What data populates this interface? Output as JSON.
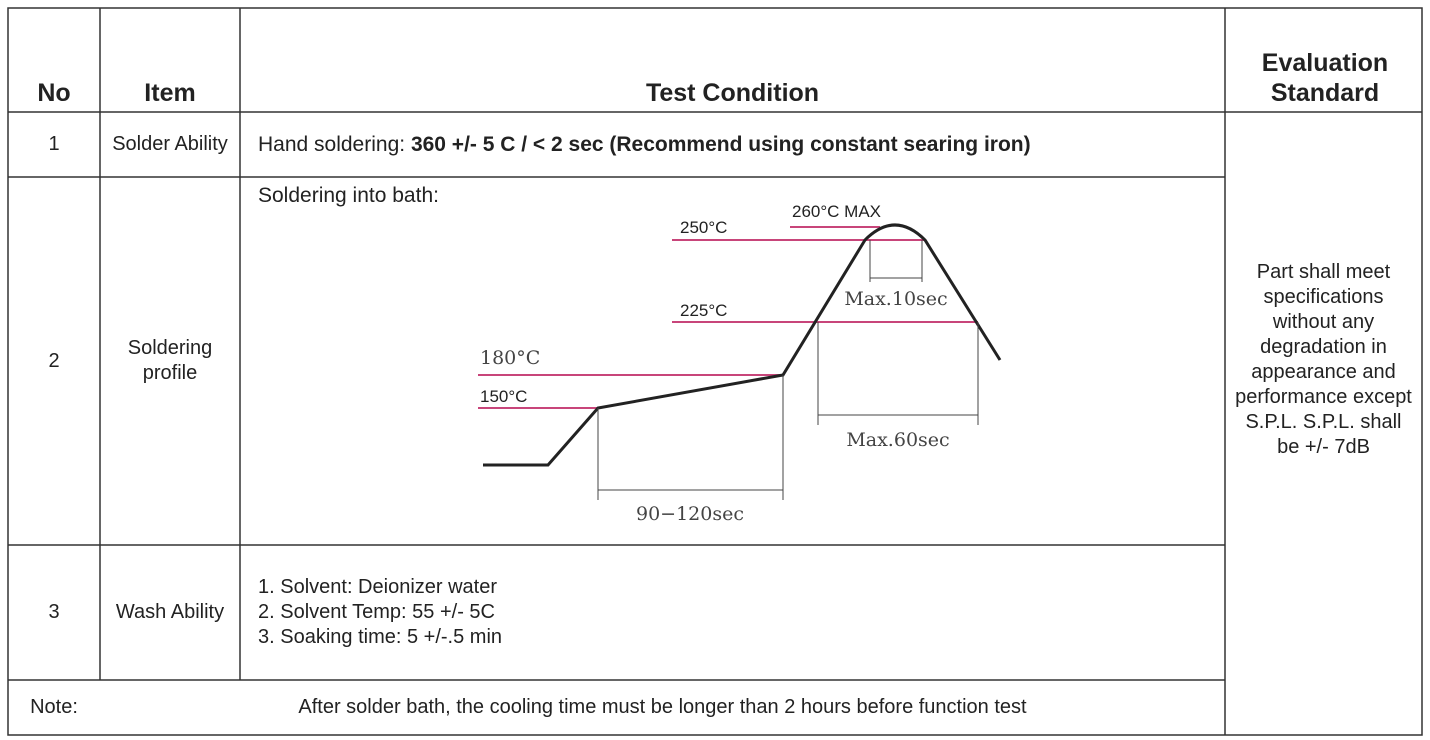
{
  "header": {
    "no": "No",
    "item": "Item",
    "test_condition": "Test Condition",
    "evaluation_standard": "Evaluation Standard"
  },
  "rows": [
    {
      "no": "1",
      "item": "Solder Ability",
      "condition_prefix": "Hand soldering: ",
      "condition_bold": "360 +/- 5 C / < 2 sec (Recommend using constant searing iron)"
    },
    {
      "no": "2",
      "item": "Soldering profile",
      "condition_intro": "Soldering into bath:",
      "diagram": {
        "peak": "260°C MAX",
        "t250": "250°C",
        "t225": "225°C",
        "t180": "180°C",
        "t150": "150°C",
        "max10": "Max.10sec",
        "max60": "Max.60sec",
        "preheat": "90−120sec"
      }
    },
    {
      "no": "3",
      "item": "Wash Ability",
      "condition_lines": [
        "1. Solvent:  Deionizer water",
        "2. Solvent Temp: 55 +/- 5C",
        "3. Soaking time: 5 +/-.5 min"
      ]
    }
  ],
  "note": {
    "label": "Note:",
    "text": "After solder bath, the cooling time must be longer than 2 hours before function test"
  },
  "evaluation": "Part shall meet specifications without any degradation in appearance and performance except S.P.L. S.P.L. shall be +/- 7dB"
}
